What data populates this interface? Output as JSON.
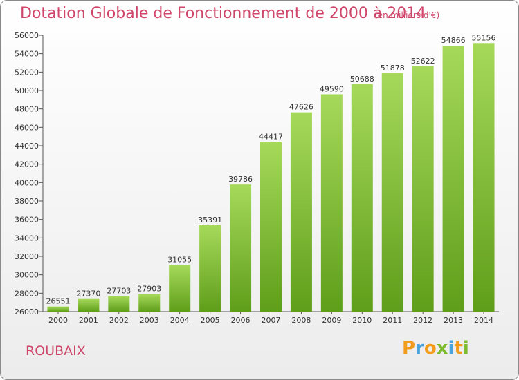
{
  "title": "Dotation Globale de Fonctionnement de 2000 à 2014",
  "subtitle": "(en milliers d'€)",
  "footer": {
    "commune": "ROUBAIX"
  },
  "logo": {
    "letters": [
      "P",
      "r",
      "o",
      "x",
      "i",
      "t",
      "i"
    ],
    "colors": [
      "#f29b1d",
      "#4aa3df",
      "#f29b1d",
      "#7dbb2e",
      "#4aa3df",
      "#f29b1d",
      "#7dbb2e"
    ]
  },
  "colors": {
    "bar_top": "#a6d95a",
    "bar_bottom": "#5f9e1a",
    "text": "#333333",
    "accent": "#d0456a"
  },
  "chart_data": {
    "type": "bar",
    "categories": [
      "2000",
      "2001",
      "2002",
      "2003",
      "2004",
      "2005",
      "2006",
      "2007",
      "2008",
      "2009",
      "2010",
      "2011",
      "2012",
      "2013",
      "2014"
    ],
    "values": [
      26551,
      27370,
      27703,
      27903,
      31055,
      35391,
      39786,
      44417,
      47626,
      49590,
      50688,
      51878,
      52622,
      54866,
      55156
    ],
    "ylim": [
      26000,
      56000
    ],
    "yticks": [
      26000,
      28000,
      30000,
      32000,
      34000,
      36000,
      38000,
      40000,
      42000,
      44000,
      46000,
      48000,
      50000,
      52000,
      54000,
      56000
    ],
    "grid": false,
    "data_labels": true
  }
}
